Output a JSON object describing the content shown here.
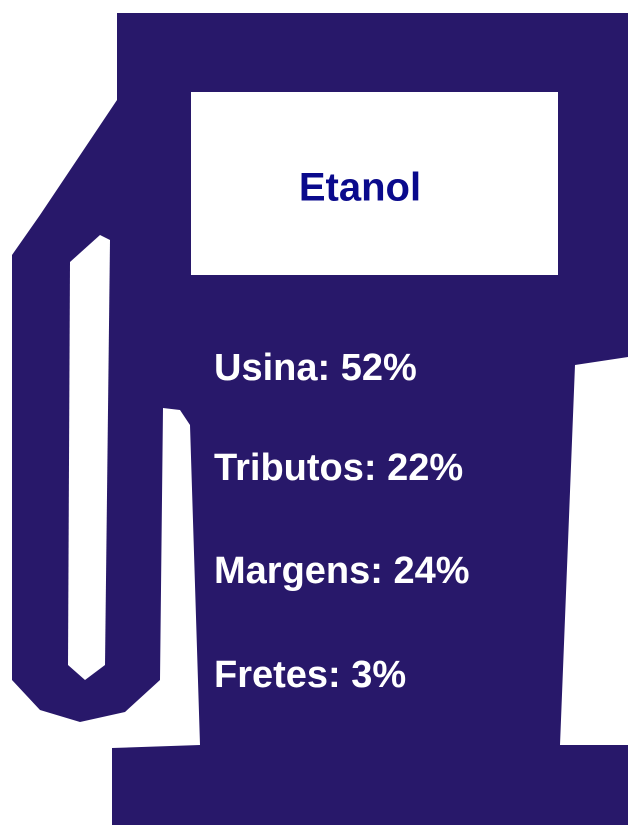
{
  "title": "Etanol",
  "items": [
    "Usina: 52%",
    "Tributos: 22%",
    "Margens: 24%",
    "Fretes: 3%"
  ]
}
